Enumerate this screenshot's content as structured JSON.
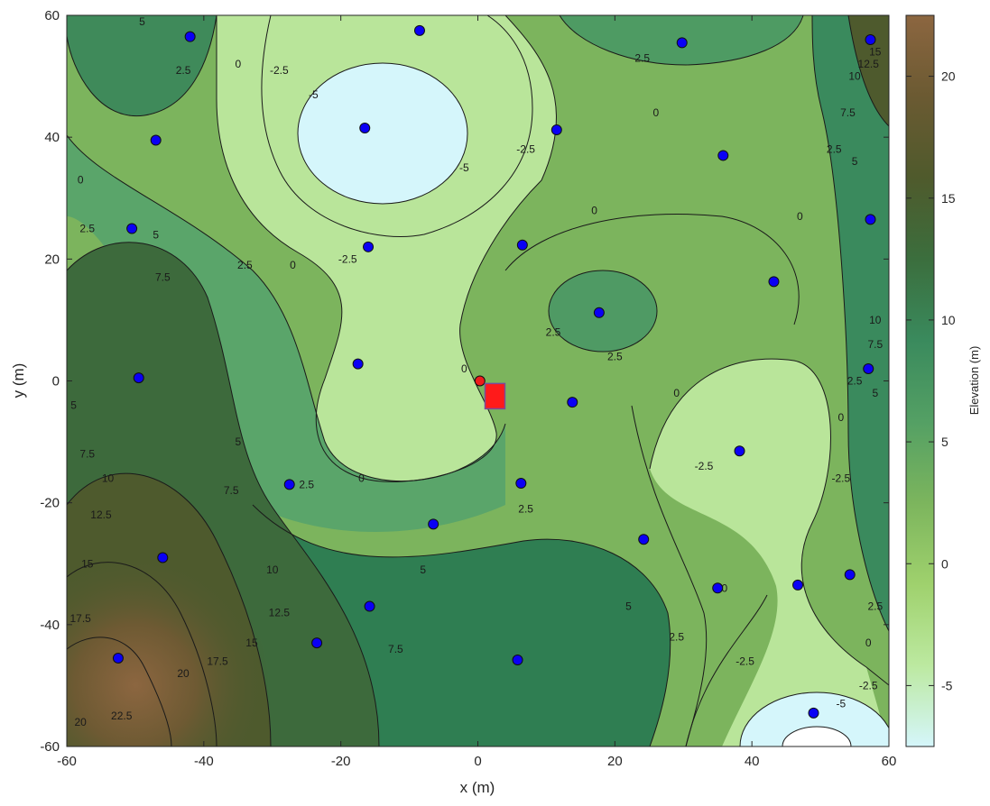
{
  "chart_data": {
    "type": "contour",
    "title": "",
    "xlabel": "x (m)",
    "ylabel": "y (m)",
    "xlim": [
      -60,
      60
    ],
    "ylim": [
      -60,
      60
    ],
    "xticks": [
      "-60",
      "-40",
      "-20",
      "0",
      "20",
      "40",
      "60"
    ],
    "yticks": [
      "-60",
      "-40",
      "-20",
      "0",
      "20",
      "40",
      "60"
    ],
    "grid": false,
    "colorbar": {
      "label": "Elevation (m)",
      "range": [
        -7.5,
        22.5
      ],
      "ticks": [
        "-5",
        "0",
        "5",
        "10",
        "15",
        "20"
      ],
      "colors": [
        "#d5f6fb",
        "#bce9a0",
        "#9fd16d",
        "#7cb55d",
        "#54a064",
        "#3a8a5d",
        "#3b6e3d",
        "#4f5a2c",
        "#6b5a32",
        "#8c6640"
      ]
    },
    "contour_levels": [
      -7.5,
      -5,
      -2.5,
      0,
      2.5,
      5,
      7.5,
      10,
      12.5,
      15,
      17.5,
      20,
      22.5
    ],
    "contour_labels": [
      {
        "text": "5",
        "x": -49,
        "y": 59
      },
      {
        "text": "2.5",
        "x": -43,
        "y": 51
      },
      {
        "text": "0",
        "x": -35,
        "y": 52
      },
      {
        "text": "-2.5",
        "x": -29,
        "y": 51
      },
      {
        "text": "-5",
        "x": -24,
        "y": 47
      },
      {
        "text": "-5",
        "x": -2,
        "y": 35
      },
      {
        "text": "-2.5",
        "x": 7,
        "y": 38
      },
      {
        "text": "2.5",
        "x": 24,
        "y": 53
      },
      {
        "text": "0",
        "x": 26,
        "y": 44
      },
      {
        "text": "2.5",
        "x": 52,
        "y": 38
      },
      {
        "text": "5",
        "x": 55,
        "y": 36
      },
      {
        "text": "7.5",
        "x": 54,
        "y": 44
      },
      {
        "text": "10",
        "x": 55,
        "y": 50
      },
      {
        "text": "12.5",
        "x": 57,
        "y": 52
      },
      {
        "text": "15",
        "x": 58,
        "y": 54
      },
      {
        "text": "0",
        "x": -58,
        "y": 33
      },
      {
        "text": "2.5",
        "x": -57,
        "y": 25
      },
      {
        "text": "5",
        "x": -47,
        "y": 24
      },
      {
        "text": "7.5",
        "x": -46,
        "y": 17
      },
      {
        "text": "2.5",
        "x": -34,
        "y": 19
      },
      {
        "text": "0",
        "x": -27,
        "y": 19
      },
      {
        "text": "-2.5",
        "x": -19,
        "y": 20
      },
      {
        "text": "0",
        "x": 17,
        "y": 28
      },
      {
        "text": "0",
        "x": 47,
        "y": 27
      },
      {
        "text": "2.5",
        "x": 11,
        "y": 8
      },
      {
        "text": "2.5",
        "x": 20,
        "y": 4
      },
      {
        "text": "0",
        "x": -2,
        "y": 2
      },
      {
        "text": "10",
        "x": 58,
        "y": 10
      },
      {
        "text": "7.5",
        "x": 58,
        "y": 6
      },
      {
        "text": "2.5",
        "x": 55,
        "y": 0
      },
      {
        "text": "5",
        "x": 58,
        "y": -2
      },
      {
        "text": "0",
        "x": 29,
        "y": -2
      },
      {
        "text": "0",
        "x": 53,
        "y": -6
      },
      {
        "text": "5",
        "x": -59,
        "y": -4
      },
      {
        "text": "7.5",
        "x": -57,
        "y": -12
      },
      {
        "text": "10",
        "x": -54,
        "y": -16
      },
      {
        "text": "5",
        "x": -35,
        "y": -10
      },
      {
        "text": "7.5",
        "x": -36,
        "y": -18
      },
      {
        "text": "2.5",
        "x": -25,
        "y": -17
      },
      {
        "text": "0",
        "x": -17,
        "y": -16
      },
      {
        "text": "-2.5",
        "x": 33,
        "y": -14
      },
      {
        "text": "-2.5",
        "x": 53,
        "y": -16
      },
      {
        "text": "12.5",
        "x": -55,
        "y": -22
      },
      {
        "text": "2.5",
        "x": 7,
        "y": -21
      },
      {
        "text": "15",
        "x": -57,
        "y": -30
      },
      {
        "text": "5",
        "x": -8,
        "y": -31
      },
      {
        "text": "10",
        "x": -30,
        "y": -31
      },
      {
        "text": "0",
        "x": 36,
        "y": -34
      },
      {
        "text": "17.5",
        "x": -58,
        "y": -39
      },
      {
        "text": "12.5",
        "x": -29,
        "y": -38
      },
      {
        "text": "5",
        "x": 22,
        "y": -37
      },
      {
        "text": "2.5",
        "x": 58,
        "y": -37
      },
      {
        "text": "15",
        "x": -33,
        "y": -43
      },
      {
        "text": "7.5",
        "x": -12,
        "y": -44
      },
      {
        "text": "2.5",
        "x": 29,
        "y": -42
      },
      {
        "text": "0",
        "x": 57,
        "y": -43
      },
      {
        "text": "17.5",
        "x": -38,
        "y": -46
      },
      {
        "text": "20",
        "x": -43,
        "y": -48
      },
      {
        "text": "-2.5",
        "x": 39,
        "y": -46
      },
      {
        "text": "-2.5",
        "x": 57,
        "y": -50
      },
      {
        "text": "-5",
        "x": 53,
        "y": -53
      },
      {
        "text": "20",
        "x": -58,
        "y": -56
      },
      {
        "text": "22.5",
        "x": -52,
        "y": -55
      }
    ],
    "series": [
      {
        "type": "scatter",
        "color": "#0a00f5",
        "points": [
          [
            -42,
            56.5
          ],
          [
            -8.5,
            57.5
          ],
          [
            29.8,
            55.5
          ],
          [
            57.3,
            56
          ],
          [
            -16.5,
            41.5
          ],
          [
            11.5,
            41.2
          ],
          [
            -47,
            39.5
          ],
          [
            35.8,
            37
          ],
          [
            57.3,
            26.5
          ],
          [
            -50.5,
            25
          ],
          [
            -16,
            22
          ],
          [
            6.5,
            22.3
          ],
          [
            43.2,
            16.3
          ],
          [
            17.7,
            11.2
          ],
          [
            -17.5,
            2.8
          ],
          [
            57,
            2
          ],
          [
            -49.5,
            0.5
          ],
          [
            13.8,
            -3.5
          ],
          [
            38.2,
            -11.5
          ],
          [
            -27.5,
            -17
          ],
          [
            6.3,
            -16.8
          ],
          [
            -6.5,
            -23.5
          ],
          [
            24.2,
            -26
          ],
          [
            -46,
            -29
          ],
          [
            54.3,
            -31.8
          ],
          [
            46.7,
            -33.5
          ],
          [
            35,
            -34
          ],
          [
            -15.8,
            -37
          ],
          [
            -23.5,
            -43
          ],
          [
            -52.5,
            -45.5
          ],
          [
            5.8,
            -45.8
          ],
          [
            49,
            -54.5
          ]
        ]
      },
      {
        "type": "scatter",
        "color": "#ee1c1c",
        "points": [
          [
            0.3,
            0
          ]
        ]
      },
      {
        "type": "square-marker",
        "color": "#ff1a1a",
        "points": [
          [
            2.5,
            -2.5
          ]
        ]
      }
    ]
  }
}
